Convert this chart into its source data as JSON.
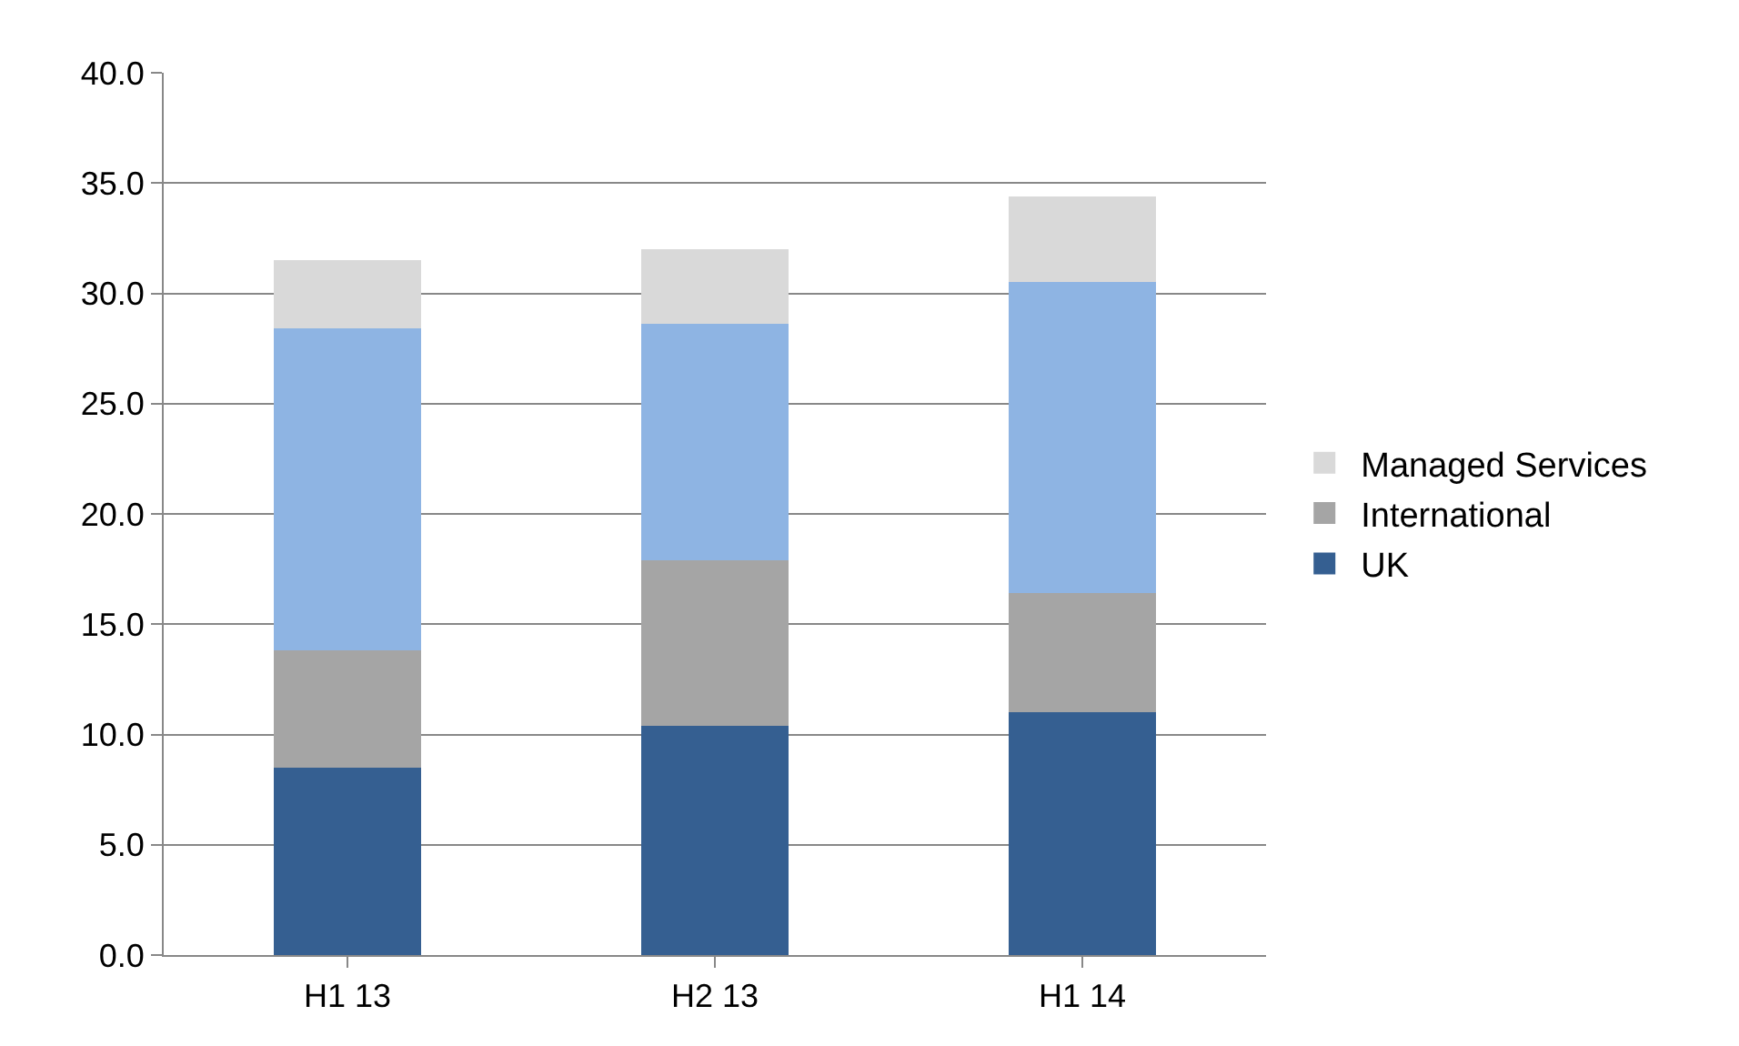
{
  "chart_data": {
    "type": "bar",
    "stacked": true,
    "categories": [
      "H1 13",
      "H2 13",
      "H1 14"
    ],
    "series": [
      {
        "name": "UK",
        "color": "#355f91",
        "values": [
          8.5,
          10.4,
          11.0
        ]
      },
      {
        "name": "International",
        "color": "#a5a5a5",
        "values": [
          5.3,
          7.5,
          5.4
        ]
      },
      {
        "color": "#8eb4e3",
        "values": [
          14.6,
          10.7,
          14.1
        ]
      },
      {
        "name": "Managed Services",
        "color": "#d9d9d9",
        "values": [
          3.1,
          3.4,
          3.9
        ]
      }
    ],
    "ylim": [
      0,
      40
    ],
    "yticks": [
      {
        "value": 0,
        "label": "0.0"
      },
      {
        "value": 5,
        "label": "5.0"
      },
      {
        "value": 10,
        "label": "10.0"
      },
      {
        "value": 15,
        "label": "15.0"
      },
      {
        "value": 20,
        "label": "20.0"
      },
      {
        "value": 25,
        "label": "25.0"
      },
      {
        "value": 30,
        "label": "30.0"
      },
      {
        "value": 35,
        "label": "35.0"
      },
      {
        "value": 40,
        "label": "40.0"
      }
    ],
    "grid": "y",
    "legend": "right"
  }
}
